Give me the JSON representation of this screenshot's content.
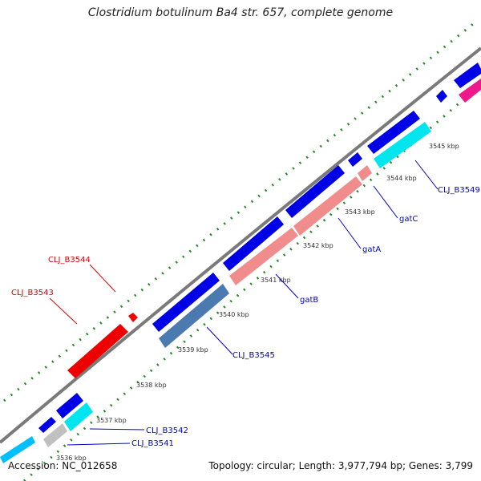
{
  "title": "Clostridium botulinum Ba4 str. 657, complete genome",
  "footer": {
    "accession": "Accession: NC_012658",
    "stats": "Topology: circular; Length: 3,977,794 bp; Genes: 3,799"
  },
  "colors": {
    "backbone": "#7a7a7a",
    "cds": "#0000e6",
    "rrna_pink": "#f08c8c",
    "cyan": "#00e5ee",
    "steelblue": "#4a7ab0",
    "grey": "#c0c0c0",
    "red": "#ee0000",
    "magenta": "#ee1a8c",
    "ticks": "#228b22",
    "label_blue": "#0000cc",
    "label_red": "#dd0000"
  },
  "tick_labels": [
    "3536 kbp",
    "3537 kbp",
    "3538 kbp",
    "3539 kbp",
    "3540 kbp",
    "3541 kbp",
    "3542 kbp",
    "3543 kbp",
    "3544 kbp",
    "3545 kbp"
  ],
  "feature_labels": {
    "blue": [
      "CLJ_B3541",
      "CLJ_B3542",
      "CLJ_B3545",
      "gatB",
      "gatA",
      "gatC",
      "CLJ_B3549"
    ],
    "red": [
      "CLJ_B3543",
      "CLJ_B3544"
    ]
  }
}
